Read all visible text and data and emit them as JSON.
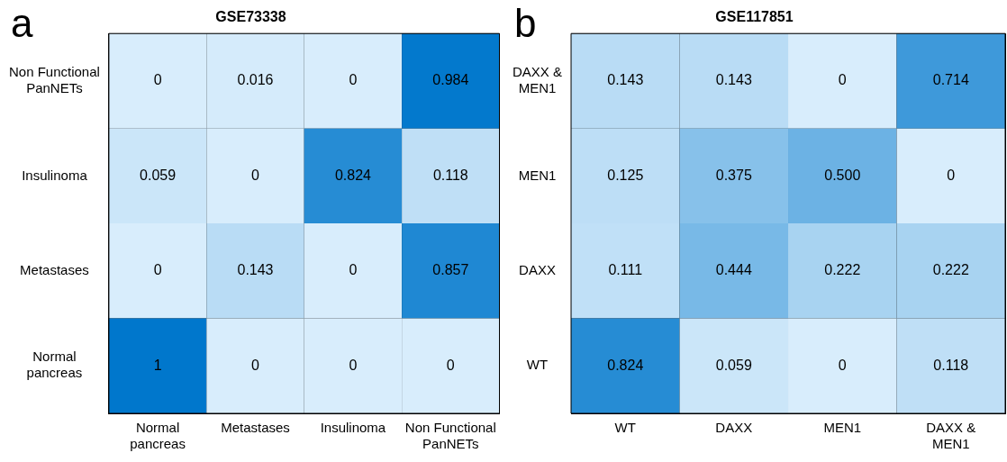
{
  "chart_data": [
    {
      "type": "heatmap",
      "title": "GSE73338",
      "annotations": [
        "a"
      ],
      "grid": true,
      "categories": [
        "Normal pancreas",
        "Metastases",
        "Insulinoma",
        "Non Functional PanNETs"
      ],
      "y_categories": [
        "Non Functional PanNETs",
        "Insulinoma",
        "Metastases",
        "Normal pancreas"
      ],
      "cells": [
        [
          0,
          0.016,
          0,
          0.984
        ],
        [
          0.059,
          0,
          0.824,
          0.118
        ],
        [
          0,
          0.143,
          0,
          0.857
        ],
        [
          1,
          0,
          0,
          0
        ]
      ],
      "cell_labels": [
        [
          "0",
          "0.016",
          "0",
          "0.984"
        ],
        [
          "0.059",
          "0",
          "0.824",
          "0.118"
        ],
        [
          "0",
          "0.143",
          "0",
          "0.857"
        ],
        [
          "1",
          "0",
          "0",
          "0"
        ]
      ]
    },
    {
      "type": "heatmap",
      "title": "GSE117851",
      "annotations": [
        "b"
      ],
      "grid": true,
      "categories": [
        "WT",
        "DAXX",
        "MEN1",
        "DAXX & MEN1"
      ],
      "y_categories": [
        "DAXX & MEN1",
        "MEN1",
        "DAXX",
        "WT"
      ],
      "cells": [
        [
          0.143,
          0.143,
          0,
          0.714
        ],
        [
          0.125,
          0.375,
          0.5,
          0
        ],
        [
          0.111,
          0.444,
          0.222,
          0.222
        ],
        [
          0.824,
          0.059,
          0,
          0.118
        ]
      ],
      "cell_labels": [
        [
          "0.143",
          "0.143",
          "0",
          "0.714"
        ],
        [
          "0.125",
          "0.375",
          "0.500",
          "0"
        ],
        [
          "0.111",
          "0.444",
          "0.222",
          "0.222"
        ],
        [
          "0.824",
          "0.059",
          "0",
          "0.118"
        ]
      ]
    }
  ]
}
